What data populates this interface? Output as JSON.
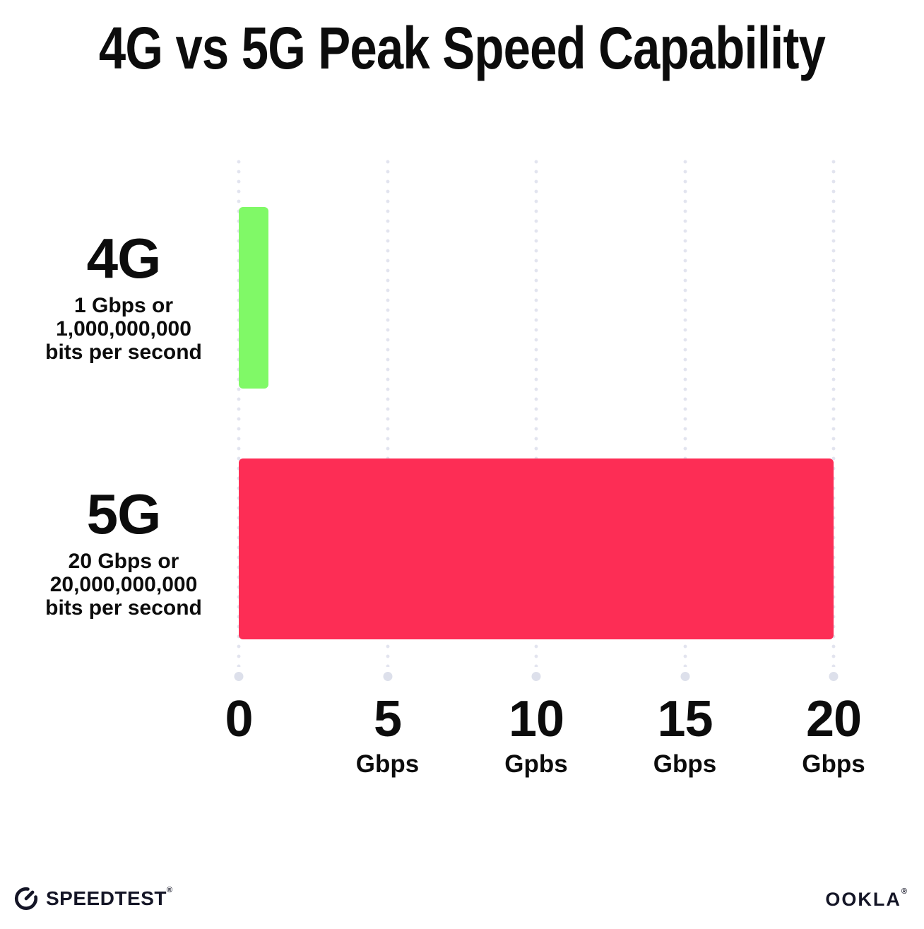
{
  "title": "4G vs 5G Peak Speed Capability",
  "chart_data": {
    "type": "bar",
    "orientation": "horizontal",
    "title": "4G vs 5G Peak Speed Capability",
    "categories": [
      "4G",
      "5G"
    ],
    "values": [
      1,
      20
    ],
    "bar_colors": [
      "#80f967",
      "#fd2d55"
    ],
    "category_sublabels": [
      [
        "1 Gbps or",
        "1,000,000,000",
        "bits per second"
      ],
      [
        "20 Gbps or",
        "20,000,000,000",
        "bits per second"
      ]
    ],
    "xlabel": "",
    "ylabel": "",
    "xlim": [
      0,
      20
    ],
    "x_ticks": [
      {
        "value": "0",
        "unit": ""
      },
      {
        "value": "5",
        "unit": "Gbps"
      },
      {
        "value": "10",
        "unit": "Gpbs"
      },
      {
        "value": "15",
        "unit": "Gbps"
      },
      {
        "value": "20",
        "unit": "Gbps"
      }
    ],
    "grid": "vertical dotted gridlines",
    "grid_color": "#e2e4ef",
    "legend": "none"
  },
  "rows": [
    {
      "label": "4G",
      "sub1": "1 Gbps or",
      "sub2": "1,000,000,000",
      "sub3": "bits per second",
      "value": 1,
      "color": "#80f967"
    },
    {
      "label": "5G",
      "sub1": "20 Gbps or",
      "sub2": "20,000,000,000",
      "sub3": "bits per second",
      "value": 20,
      "color": "#fd2d55"
    }
  ],
  "footer": {
    "speedtest_label": "SPEEDTEST",
    "speedtest_mark": "®",
    "speedtest_icon": "gauge-icon",
    "ookla_label": "OOKLA",
    "ookla_mark": "®"
  },
  "colors": {
    "bar_4g": "#80f967",
    "bar_5g": "#fd2d55",
    "grid_dot": "#e2e4ef",
    "grid_end_dot": "#dde0eb",
    "text": "#0c0c0c",
    "background": "#ffffff"
  }
}
